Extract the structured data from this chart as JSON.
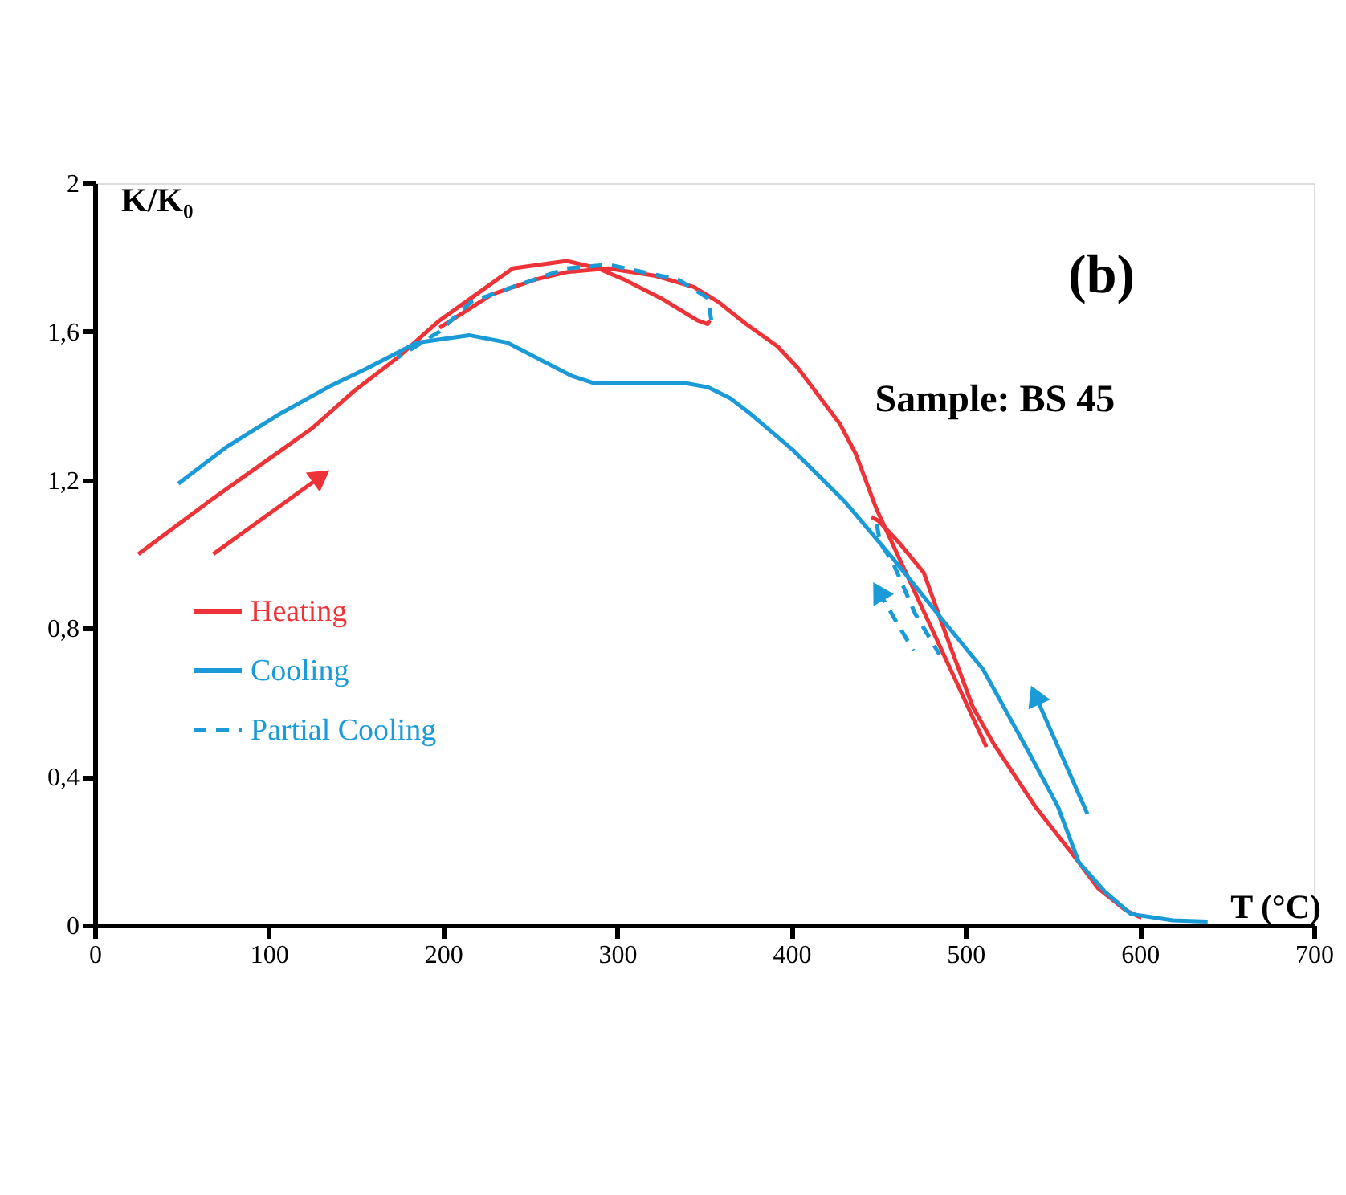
{
  "chart_data": {
    "type": "line",
    "xlabel": "T (°C)",
    "ylabel": "K/K₀",
    "annotations": [
      "(b)",
      "Sample: BS 45"
    ],
    "xlim": [
      0,
      700
    ],
    "xticks": [
      0,
      100,
      200,
      300,
      400,
      500,
      600,
      700
    ],
    "ylim": [
      0,
      2
    ],
    "yticks": [
      0,
      {
        "value": 0.4,
        "label": "0,4"
      },
      {
        "value": 0.8,
        "label": "0,8"
      },
      {
        "value": 1.2,
        "label": "1,2"
      },
      {
        "value": 1.6,
        "label": "1,6"
      },
      2
    ],
    "grid": false,
    "legend": "left",
    "marker": "none",
    "series": [
      {
        "name": "Heating",
        "color": "#ee3338",
        "line_style": "solid",
        "x": [
          25,
          65,
          101,
          125,
          149,
          174,
          198,
          219,
          240,
          271,
          289,
          304,
          325,
          346,
          352,
          353,
          null,
          198,
          228,
          253,
          271,
          295,
          322,
          344,
          358,
          374,
          392,
          404,
          428,
          437,
          449,
          512,
          null,
          446,
          450,
          462,
          476,
          489,
          504,
          516,
          540,
          565,
          576,
          592,
          601
        ],
        "values": [
          1.0,
          1.14,
          1.26,
          1.34,
          1.44,
          1.53,
          1.63,
          1.7,
          1.77,
          1.79,
          1.77,
          1.74,
          1.69,
          1.63,
          1.62,
          1.63,
          null,
          1.61,
          1.7,
          1.74,
          1.76,
          1.77,
          1.75,
          1.72,
          1.68,
          1.62,
          1.56,
          1.5,
          1.35,
          1.27,
          1.12,
          0.48,
          null,
          1.1,
          1.09,
          1.03,
          0.95,
          0.78,
          0.59,
          0.49,
          0.32,
          0.17,
          0.1,
          0.04,
          0.02
        ]
      },
      {
        "name": "Cooling",
        "color": "#1a9ad6",
        "line_style": "solid",
        "x": [
          48,
          76,
          107,
          134,
          156,
          185,
          215,
          237,
          274,
          287,
          340,
          352,
          365,
          376,
          401,
          431,
          458,
          489,
          510,
          537,
          553,
          565,
          580,
          595,
          619,
          639
        ],
        "values": [
          1.19,
          1.29,
          1.38,
          1.45,
          1.5,
          1.57,
          1.59,
          1.57,
          1.48,
          1.46,
          1.46,
          1.45,
          1.42,
          1.38,
          1.28,
          1.14,
          0.99,
          0.81,
          0.69,
          0.46,
          0.32,
          0.17,
          0.09,
          0.03,
          0.013,
          0.01
        ]
      },
      {
        "name": "Partial Cooling",
        "color": "#1a9ad6",
        "line_style": "dashed",
        "x": [
          354,
          352,
          335,
          295,
          271,
          240,
          216,
          198,
          174,
          null,
          449,
          451,
          458,
          471,
          485
        ],
        "values": [
          1.63,
          1.69,
          1.74,
          1.78,
          1.77,
          1.72,
          1.68,
          1.6,
          1.53,
          null,
          1.08,
          1.03,
          0.98,
          0.84,
          0.73
        ]
      }
    ]
  }
}
